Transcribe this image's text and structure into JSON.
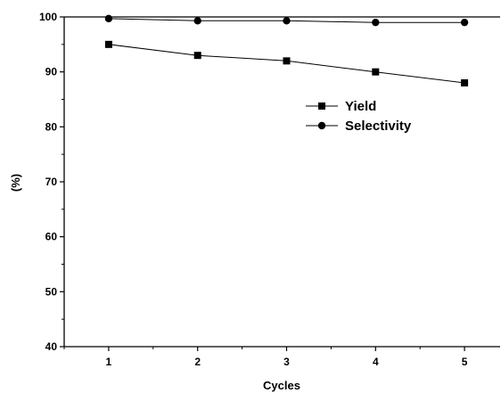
{
  "chart_data": {
    "type": "line",
    "xlabel": "Cycles",
    "ylabel": "(%)",
    "x": [
      1,
      2,
      3,
      4,
      5
    ],
    "xlim": [
      0.5,
      5.4
    ],
    "ylim": [
      40,
      100
    ],
    "xticks": [
      1,
      2,
      3,
      4,
      5
    ],
    "yticks": [
      40,
      50,
      60,
      70,
      80,
      90,
      100
    ],
    "grid": false,
    "legend_position": "right-upper",
    "series": [
      {
        "name": "Yield",
        "marker": "square",
        "values": [
          95,
          93,
          92,
          90,
          88
        ]
      },
      {
        "name": "Selectivity",
        "marker": "circle",
        "values": [
          99.7,
          99.3,
          99.3,
          99,
          99
        ]
      }
    ]
  }
}
